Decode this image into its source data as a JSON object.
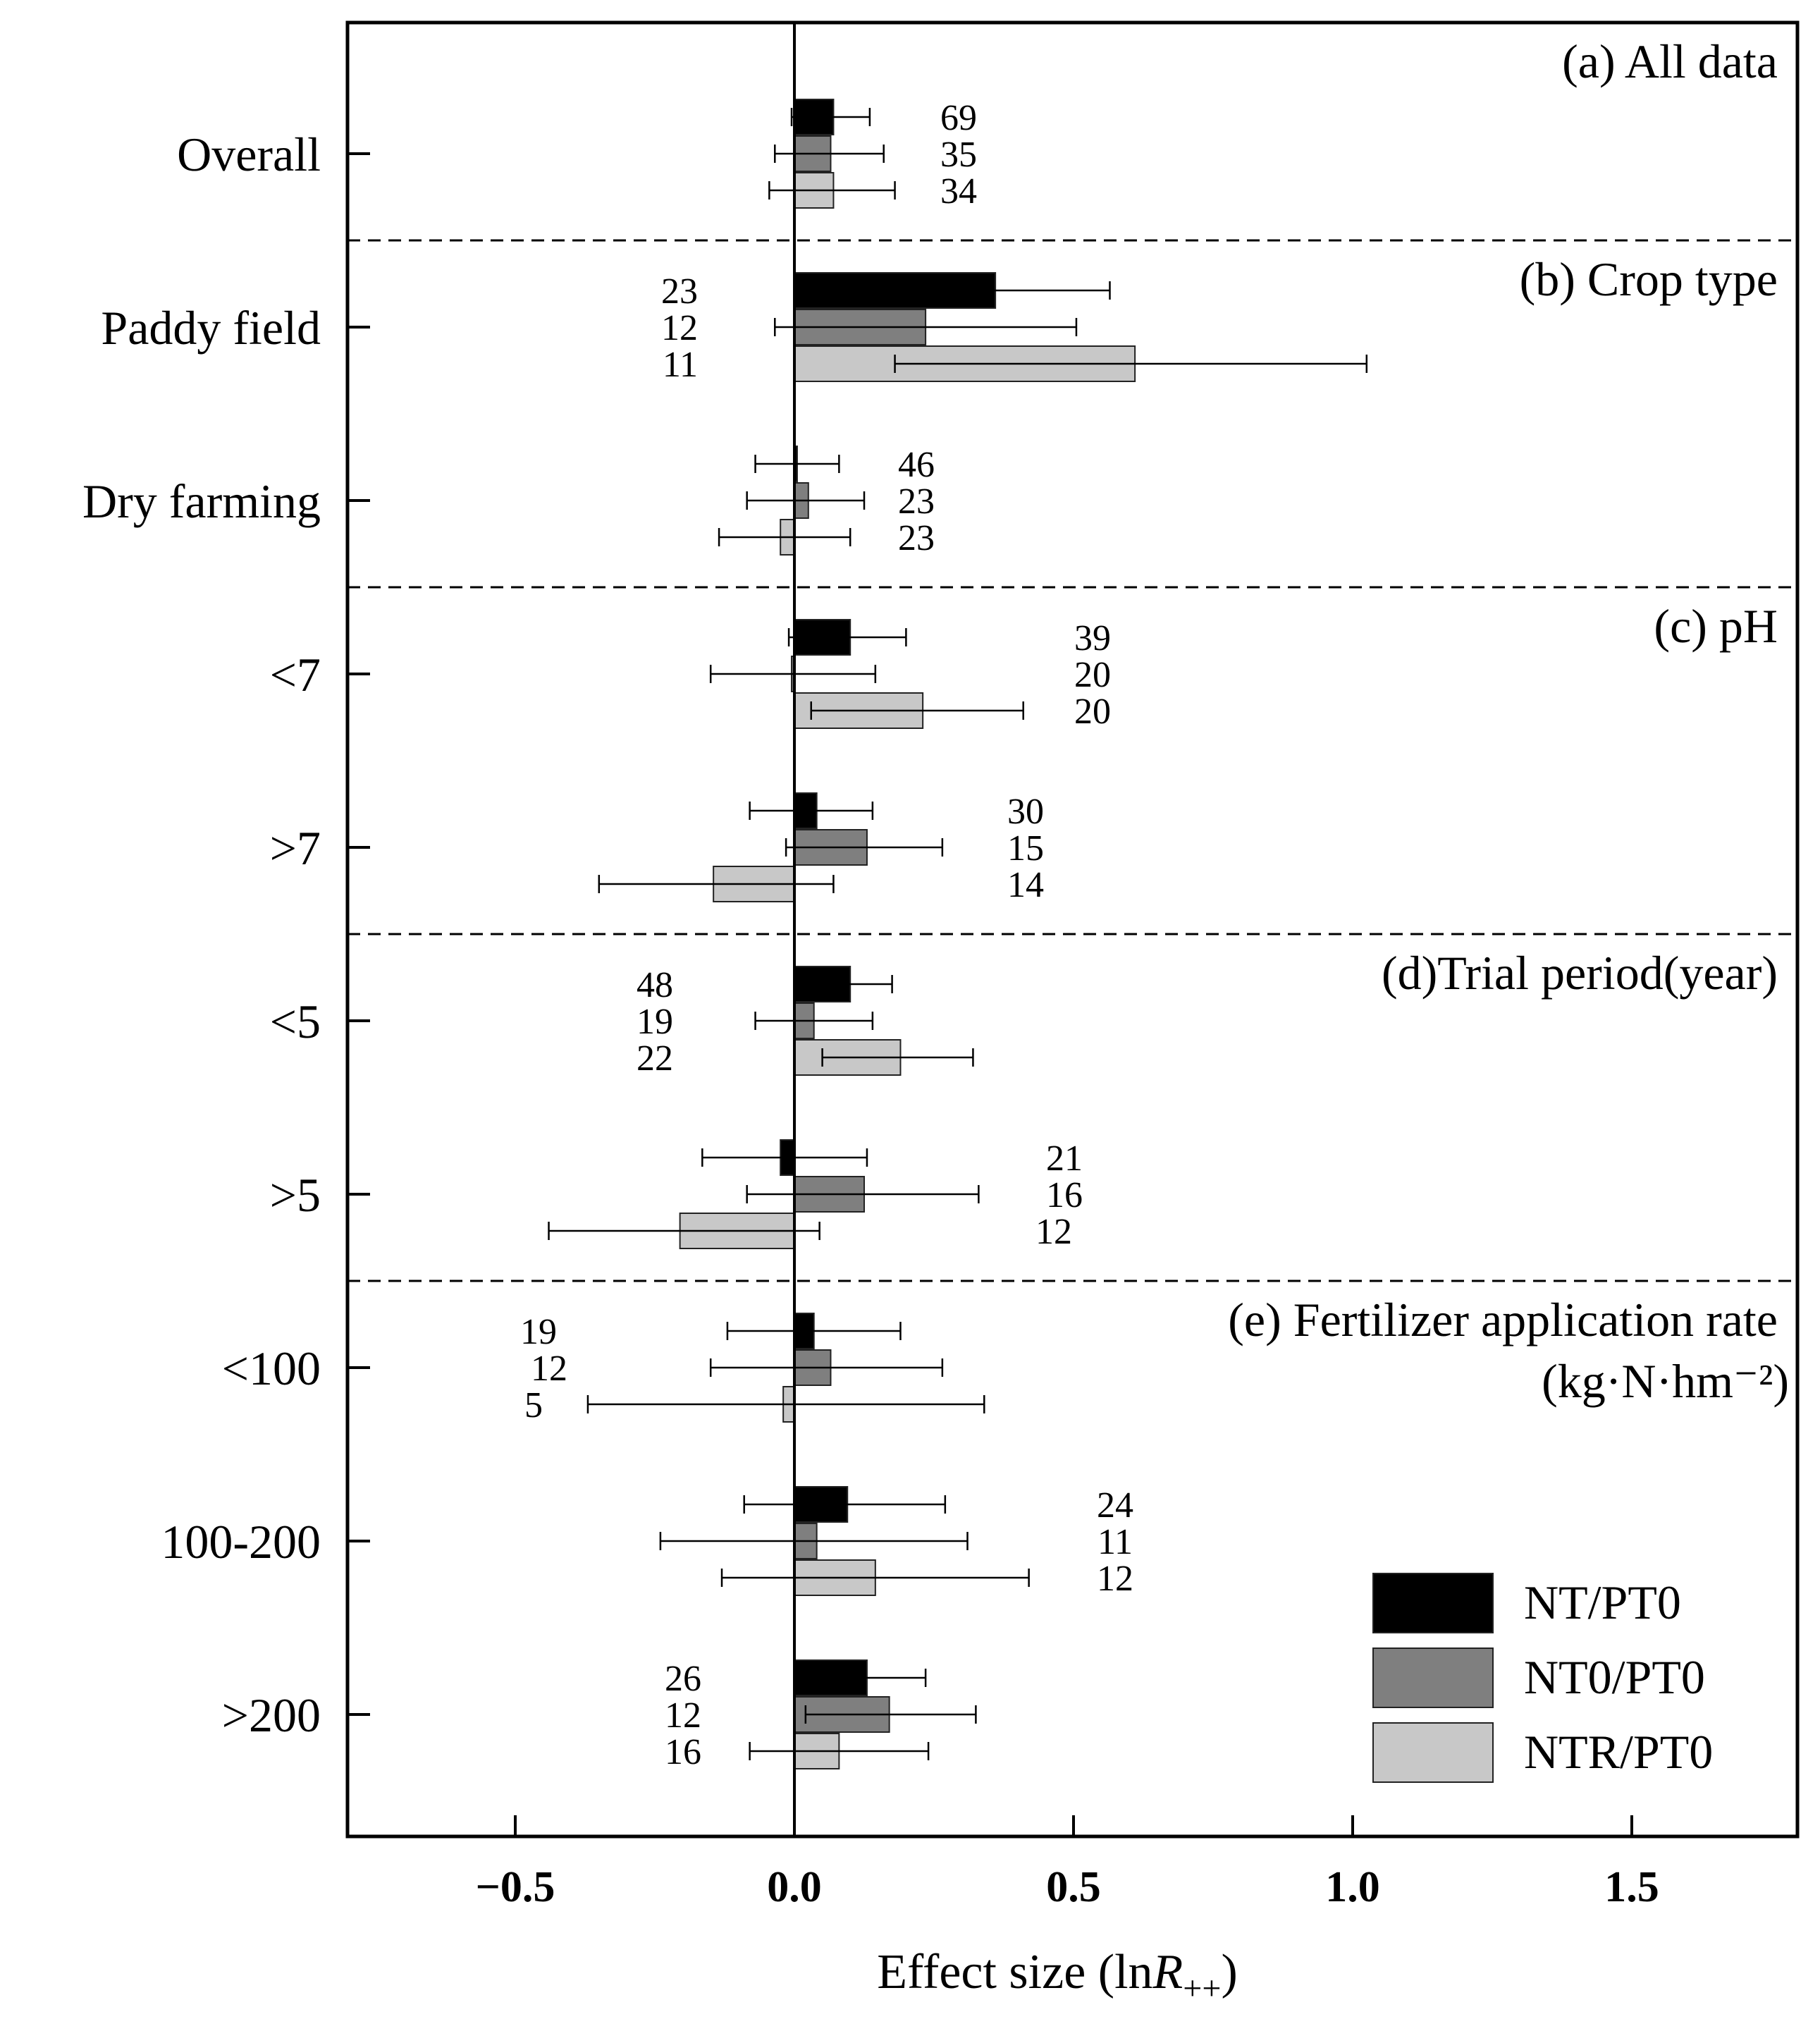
{
  "chart_data": {
    "type": "bar",
    "orientation": "horizontal",
    "xlabel": "Effect size (lnR++)",
    "xlabel_parts": {
      "prefix": "Effect size (ln",
      "var": "R",
      "sub": "++",
      "suffix": ")"
    },
    "xlim": [
      -0.8,
      1.8
    ],
    "xticks": [
      -0.5,
      0.0,
      0.5,
      1.0,
      1.5
    ],
    "xtick_labels": [
      "−0.5",
      "0.0",
      "0.5",
      "1.0",
      "1.5"
    ],
    "zero_line": true,
    "legend_position": "bottom-right",
    "series": [
      {
        "name": "NT/PT0",
        "color": "#000000"
      },
      {
        "name": "NT0/PT0",
        "color": "#7f7f7f"
      },
      {
        "name": "NTR/PT0",
        "color": "#c8c8c8"
      }
    ],
    "panels": [
      {
        "title": "(a) All data",
        "title2": "",
        "categories": [
          0
        ]
      },
      {
        "title": "(b) Crop type",
        "title2": "",
        "categories": [
          1,
          2
        ]
      },
      {
        "title": "(c) pH",
        "title2": "",
        "categories": [
          3,
          4
        ]
      },
      {
        "title": "(d)Trial period(year)",
        "title2": "",
        "categories": [
          5,
          6
        ]
      },
      {
        "title": "(e) Fertilizer application rate",
        "title2": "(kg·N·hm⁻²)",
        "categories": [
          7,
          8,
          9
        ]
      }
    ],
    "categories": [
      {
        "label": "Overall",
        "label_side": "right",
        "values": [
          0.07,
          0.065,
          0.07
        ],
        "lower": [
          -0.005,
          -0.035,
          -0.045
        ],
        "upper": [
          0.135,
          0.16,
          0.18
        ],
        "n": [
          "69",
          "35",
          "34"
        ]
      },
      {
        "label": "Paddy field",
        "label_side": "left",
        "values": [
          0.36,
          0.235,
          0.61
        ],
        "lower": [
          0.17,
          -0.035,
          0.18
        ],
        "upper": [
          0.565,
          0.505,
          1.025
        ],
        "n": [
          "23",
          "12",
          "11"
        ]
      },
      {
        "label": "Dry farming",
        "label_side": "right",
        "values": [
          0.005,
          0.025,
          -0.025
        ],
        "lower": [
          -0.07,
          -0.085,
          -0.135
        ],
        "upper": [
          0.08,
          0.125,
          0.1
        ],
        "n": [
          "46",
          "23",
          "23"
        ]
      },
      {
        "label": "<7",
        "label_side": "right",
        "values": [
          0.1,
          -0.005,
          0.23
        ],
        "lower": [
          -0.01,
          -0.15,
          0.03
        ],
        "upper": [
          0.2,
          0.145,
          0.41
        ],
        "n": [
          "39",
          "20",
          "20"
        ]
      },
      {
        "label": ">7",
        "label_side": "right",
        "values": [
          0.04,
          0.13,
          -0.145
        ],
        "lower": [
          -0.08,
          -0.015,
          -0.35
        ],
        "upper": [
          0.14,
          0.265,
          0.07
        ],
        "n": [
          "30",
          "15",
          "14"
        ]
      },
      {
        "label": "<5",
        "label_side": "left",
        "values": [
          0.1,
          0.035,
          0.19
        ],
        "lower": [
          0.025,
          -0.07,
          0.05
        ],
        "upper": [
          0.175,
          0.14,
          0.32
        ],
        "n": [
          "48",
          "19",
          "22"
        ]
      },
      {
        "label": ">5",
        "label_side": "right",
        "values": [
          -0.025,
          0.125,
          -0.205
        ],
        "lower": [
          -0.165,
          -0.085,
          -0.44
        ],
        "upper": [
          0.13,
          0.33,
          0.045
        ],
        "n": [
          "21",
          "16",
          "12"
        ]
      },
      {
        "label": "<100",
        "label_side": "left",
        "values": [
          0.035,
          0.065,
          -0.02
        ],
        "lower": [
          -0.12,
          -0.15,
          -0.37
        ],
        "upper": [
          0.19,
          0.265,
          0.34
        ],
        "n": [
          "19",
          "12",
          "5"
        ]
      },
      {
        "label": "100-200",
        "label_side": "right",
        "values": [
          0.095,
          0.04,
          0.145
        ],
        "lower": [
          -0.09,
          -0.24,
          -0.13
        ],
        "upper": [
          0.27,
          0.31,
          0.42
        ],
        "n": [
          "24",
          "11",
          "12"
        ]
      },
      {
        "label": ">200",
        "label_side": "left",
        "values": [
          0.13,
          0.17,
          0.08
        ],
        "lower": [
          0.01,
          0.02,
          -0.08
        ],
        "upper": [
          0.235,
          0.325,
          0.24
        ],
        "n": [
          "26",
          "12",
          "16"
        ]
      }
    ]
  }
}
